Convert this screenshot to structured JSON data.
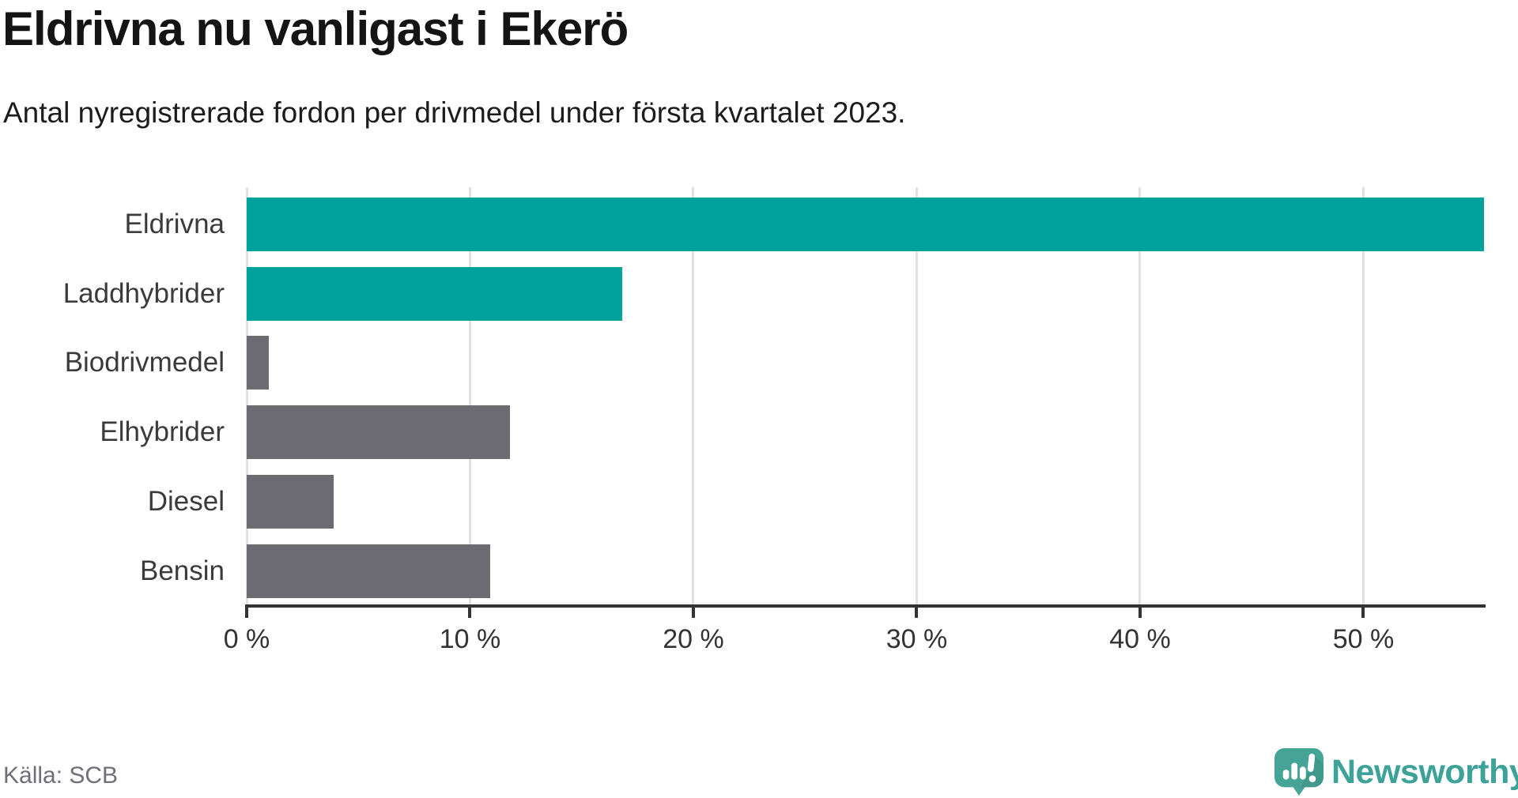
{
  "header": {
    "title": "Eldrivna nu vanligast i Ekerö",
    "subtitle": "Antal nyregistrerade fordon per drivmedel under första kvartalet 2023."
  },
  "chart_data": {
    "type": "bar",
    "orientation": "horizontal",
    "title": "Eldrivna nu vanligast i Ekerö",
    "subtitle": "Antal nyregistrerade fordon per drivmedel under första kvartalet 2023.",
    "categories": [
      "Eldrivna",
      "Laddhybrider",
      "Biodrivmedel",
      "Elhybrider",
      "Diesel",
      "Bensin"
    ],
    "values": [
      55.4,
      16.8,
      1.0,
      11.8,
      3.9,
      10.9
    ],
    "unit": "%",
    "xlabel": "",
    "ylabel": "",
    "xlim": [
      0,
      55.4
    ],
    "x_ticks": [
      {
        "value": 0,
        "label": "0 %"
      },
      {
        "value": 10,
        "label": "10 %"
      },
      {
        "value": 20,
        "label": "20 %"
      },
      {
        "value": 30,
        "label": "30 %"
      },
      {
        "value": 40,
        "label": "40 %"
      },
      {
        "value": 50,
        "label": "50 %"
      }
    ],
    "grid": true,
    "legend": "none",
    "highlight_categories": [
      "Eldrivna",
      "Laddhybrider"
    ],
    "bar_colors": [
      "#00a29b",
      "#00a29b",
      "#6c6b72",
      "#6c6b72",
      "#6c6b72",
      "#6c6b72"
    ]
  },
  "footer": {
    "source": "Källa: SCB",
    "brand": "Newsworthy"
  },
  "colors": {
    "highlight_bar": "#00a29b",
    "default_bar": "#6c6b72",
    "gridline": "#e1e1e3",
    "axis": "#333333",
    "title_text": "#141414",
    "label_text": "#3b3b3b",
    "source_text": "#6f6e79",
    "brand_teal": "#3da297",
    "logo_bubble": "#46a497",
    "background": "#ffffff"
  }
}
